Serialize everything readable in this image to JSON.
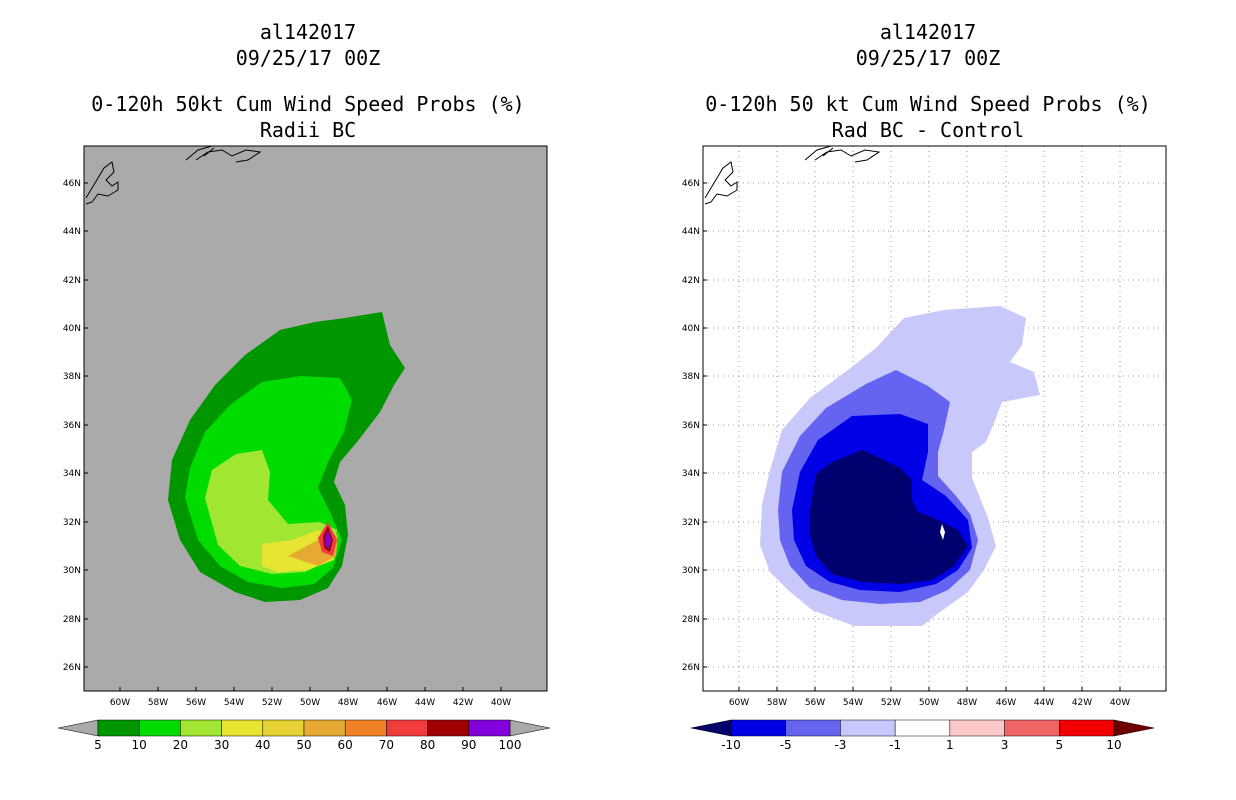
{
  "left_panel": {
    "storm_id": "al142017",
    "datetime": "09/25/17 00Z",
    "product_title": "0-120h 50kt Cum Wind Speed Probs (%)",
    "subtitle": "Radii BC",
    "background_color": "#aaaaaa",
    "colorbar": {
      "labels": [
        "5",
        "10",
        "20",
        "30",
        "40",
        "50",
        "60",
        "70",
        "80",
        "90",
        "100"
      ],
      "colors": [
        "#009600",
        "#00dc00",
        "#a0e632",
        "#e6e632",
        "#e6d232",
        "#e6aa32",
        "#f08228",
        "#f03c3c",
        "#a00000",
        "#8200dc"
      ],
      "end_color": "#aaaaaa"
    }
  },
  "right_panel": {
    "storm_id": "al142017",
    "datetime": "09/25/17 00Z",
    "product_title": "0-120h 50 kt Cum Wind Speed Probs (%)",
    "subtitle": "Rad BC - Control",
    "background_color": "#ffffff",
    "colorbar": {
      "labels": [
        "-10",
        "-5",
        "-3",
        "-1",
        "1",
        "3",
        "5",
        "10"
      ],
      "colors": [
        "#0000e6",
        "#6464f0",
        "#c8c8fa",
        "#ffffff",
        "#fac8c8",
        "#f06464",
        "#f00000"
      ],
      "end_left_color": "#00006e",
      "end_right_color": "#6e0000"
    }
  },
  "axes": {
    "lat_labels": [
      "46N",
      "44N",
      "42N",
      "40N",
      "38N",
      "36N",
      "34N",
      "32N",
      "30N",
      "28N",
      "26N"
    ],
    "lon_labels": [
      "60W",
      "58W",
      "56W",
      "54W",
      "52W",
      "50W",
      "48W",
      "46W",
      "44W",
      "42W",
      "40W"
    ]
  },
  "shading_levels": {
    "left_green_dark": "#009600",
    "left_green": "#00dc00",
    "left_light_green": "#a0e632",
    "left_yellow": "#e6e632",
    "left_orange": "#e6aa32",
    "left_red": "#f03c3c",
    "left_maroon": "#a00000",
    "left_purple": "#8200dc",
    "right_light": "#c8c8fa",
    "right_mid": "#6464f0",
    "right_blue": "#0000e6",
    "right_navy": "#00006e"
  }
}
